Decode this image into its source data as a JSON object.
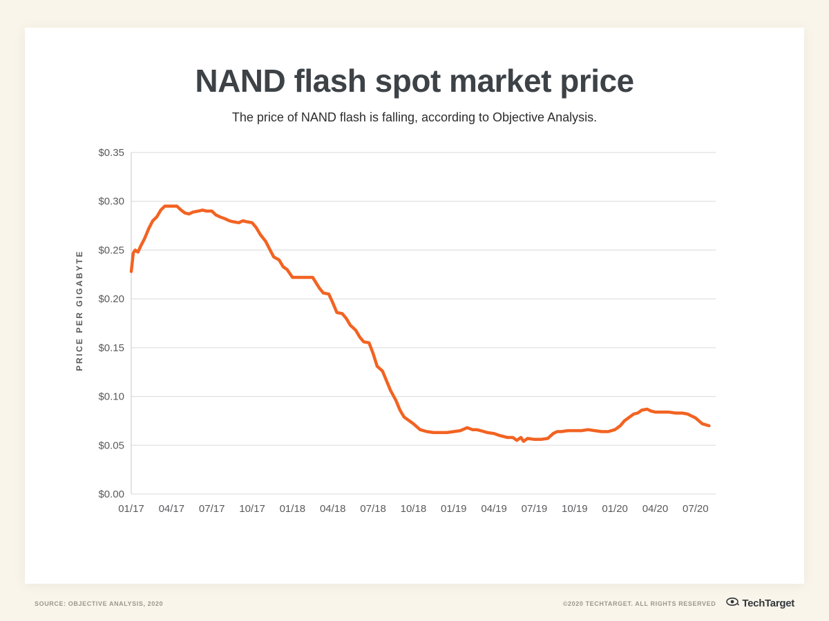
{
  "page": {
    "title": "NAND flash spot market price",
    "subtitle": "The price of NAND flash is falling, according to Objective Analysis."
  },
  "footer": {
    "source": "SOURCE: OBJECTIVE ANALYSIS, 2020",
    "copyright": "©2020 TECHTARGET. ALL RIGHTS RESERVED",
    "logo": "TechTarget"
  },
  "chart_data": {
    "type": "line",
    "title": "NAND flash spot market price",
    "subtitle": "The price of NAND flash is falling, according to Objective Analysis.",
    "xlabel": "",
    "ylabel": "PRICE PER GIGABYTE",
    "ylim": [
      0,
      0.35
    ],
    "ytick_step": 0.05,
    "ytick_prefix": "$",
    "xlim": [
      0,
      43.5
    ],
    "grid": true,
    "legend": false,
    "line_color": "#f26322",
    "grid_color": "#d9d9d9",
    "axis_color": "#c7c7c7",
    "xticks": [
      0,
      3,
      6,
      9,
      12,
      15,
      18,
      21,
      24,
      27,
      30,
      33,
      36,
      39,
      42
    ],
    "xtick_labels": [
      "01/17",
      "04/17",
      "07/17",
      "10/17",
      "01/18",
      "04/18",
      "07/18",
      "10/18",
      "01/19",
      "04/19",
      "07/19",
      "10/19",
      "01/20",
      "04/20",
      "07/20"
    ],
    "series": [
      {
        "name": "NAND flash spot price ($ per GB)",
        "points": [
          [
            0,
            0.228
          ],
          [
            0.15,
            0.247
          ],
          [
            0.3,
            0.25
          ],
          [
            0.5,
            0.248
          ],
          [
            0.7,
            0.254
          ],
          [
            1.0,
            0.262
          ],
          [
            1.3,
            0.272
          ],
          [
            1.6,
            0.28
          ],
          [
            1.9,
            0.284
          ],
          [
            2.2,
            0.291
          ],
          [
            2.5,
            0.295
          ],
          [
            2.8,
            0.295
          ],
          [
            3.1,
            0.295
          ],
          [
            3.4,
            0.295
          ],
          [
            3.7,
            0.291
          ],
          [
            4.0,
            0.288
          ],
          [
            4.3,
            0.287
          ],
          [
            4.6,
            0.289
          ],
          [
            5.0,
            0.29
          ],
          [
            5.3,
            0.291
          ],
          [
            5.6,
            0.29
          ],
          [
            6.0,
            0.29
          ],
          [
            6.3,
            0.286
          ],
          [
            6.6,
            0.284
          ],
          [
            7.0,
            0.282
          ],
          [
            7.3,
            0.28
          ],
          [
            7.6,
            0.279
          ],
          [
            8.0,
            0.278
          ],
          [
            8.3,
            0.28
          ],
          [
            8.6,
            0.279
          ],
          [
            9.0,
            0.278
          ],
          [
            9.3,
            0.273
          ],
          [
            9.6,
            0.266
          ],
          [
            10.0,
            0.259
          ],
          [
            10.3,
            0.251
          ],
          [
            10.6,
            0.243
          ],
          [
            11.0,
            0.24
          ],
          [
            11.3,
            0.233
          ],
          [
            11.6,
            0.23
          ],
          [
            12.0,
            0.222
          ],
          [
            12.5,
            0.222
          ],
          [
            13.0,
            0.222
          ],
          [
            13.5,
            0.222
          ],
          [
            14.0,
            0.211
          ],
          [
            14.3,
            0.206
          ],
          [
            14.7,
            0.205
          ],
          [
            15.0,
            0.196
          ],
          [
            15.3,
            0.186
          ],
          [
            15.7,
            0.185
          ],
          [
            16.0,
            0.18
          ],
          [
            16.3,
            0.173
          ],
          [
            16.7,
            0.168
          ],
          [
            17.0,
            0.161
          ],
          [
            17.3,
            0.156
          ],
          [
            17.7,
            0.155
          ],
          [
            18.0,
            0.144
          ],
          [
            18.3,
            0.131
          ],
          [
            18.7,
            0.126
          ],
          [
            19.0,
            0.116
          ],
          [
            19.3,
            0.106
          ],
          [
            19.7,
            0.096
          ],
          [
            20.0,
            0.086
          ],
          [
            20.3,
            0.079
          ],
          [
            20.7,
            0.075
          ],
          [
            21.0,
            0.072
          ],
          [
            21.5,
            0.066
          ],
          [
            22.0,
            0.064
          ],
          [
            22.5,
            0.063
          ],
          [
            23.0,
            0.063
          ],
          [
            23.5,
            0.063
          ],
          [
            24.0,
            0.064
          ],
          [
            24.5,
            0.065
          ],
          [
            25.0,
            0.068
          ],
          [
            25.4,
            0.066
          ],
          [
            25.7,
            0.066
          ],
          [
            26.0,
            0.065
          ],
          [
            26.5,
            0.063
          ],
          [
            27.0,
            0.062
          ],
          [
            27.4,
            0.06
          ],
          [
            27.7,
            0.059
          ],
          [
            28.0,
            0.058
          ],
          [
            28.4,
            0.058
          ],
          [
            28.7,
            0.055
          ],
          [
            29.0,
            0.058
          ],
          [
            29.2,
            0.054
          ],
          [
            29.5,
            0.057
          ],
          [
            30.0,
            0.056
          ],
          [
            30.5,
            0.056
          ],
          [
            31.0,
            0.057
          ],
          [
            31.4,
            0.062
          ],
          [
            31.7,
            0.064
          ],
          [
            32.0,
            0.064
          ],
          [
            32.5,
            0.065
          ],
          [
            33.0,
            0.065
          ],
          [
            33.5,
            0.065
          ],
          [
            34.0,
            0.066
          ],
          [
            34.5,
            0.065
          ],
          [
            35.0,
            0.064
          ],
          [
            35.5,
            0.064
          ],
          [
            36.0,
            0.066
          ],
          [
            36.4,
            0.07
          ],
          [
            36.7,
            0.075
          ],
          [
            37.0,
            0.078
          ],
          [
            37.4,
            0.082
          ],
          [
            37.7,
            0.083
          ],
          [
            38.0,
            0.086
          ],
          [
            38.4,
            0.087
          ],
          [
            38.7,
            0.085
          ],
          [
            39.0,
            0.084
          ],
          [
            39.5,
            0.084
          ],
          [
            40.0,
            0.084
          ],
          [
            40.5,
            0.083
          ],
          [
            41.0,
            0.083
          ],
          [
            41.4,
            0.082
          ],
          [
            41.7,
            0.08
          ],
          [
            42.0,
            0.078
          ],
          [
            42.5,
            0.072
          ],
          [
            43.0,
            0.07
          ]
        ]
      }
    ]
  }
}
